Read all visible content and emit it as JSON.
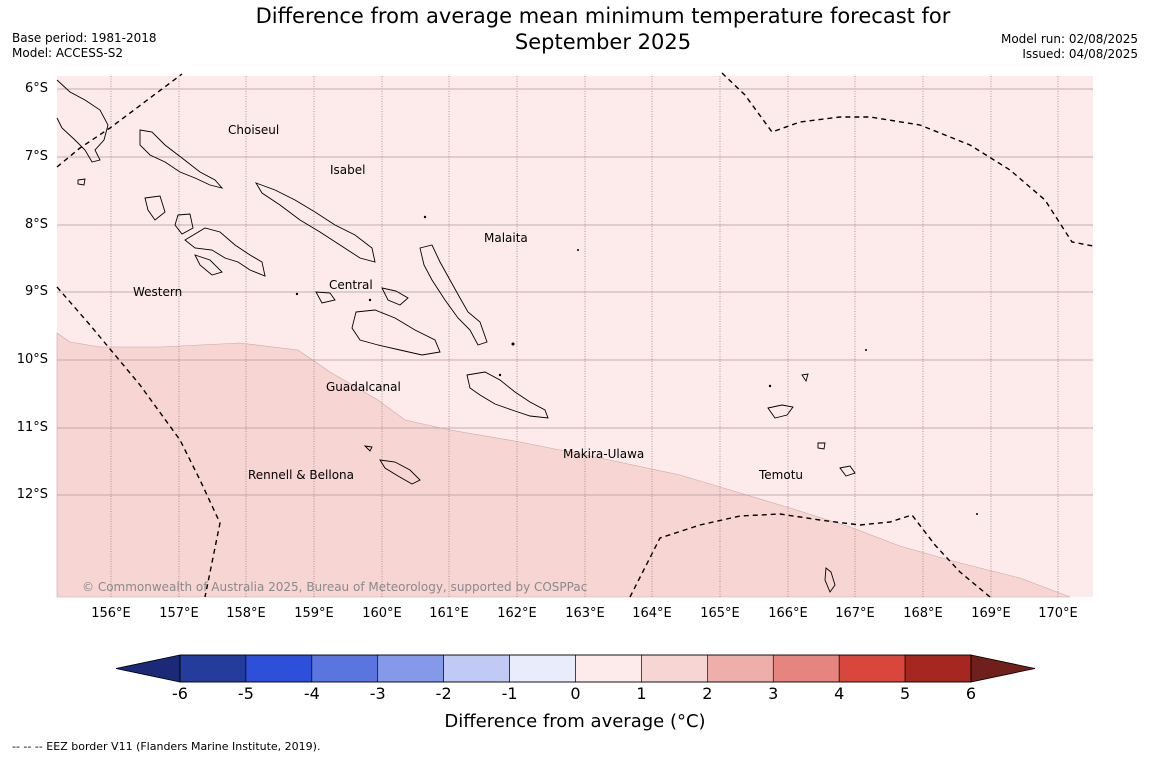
{
  "title_line1": "Difference from average mean minimum temperature forecast for",
  "title_line2": "September 2025",
  "base_period": "Base period: 1981-2018",
  "model": "Model: ACCESS-S2",
  "model_run": "Model run: 02/08/2025",
  "issued": "Issued: 04/08/2025",
  "lat_labels": [
    "6°S",
    "7°S",
    "8°S",
    "9°S",
    "10°S",
    "11°S",
    "12°S"
  ],
  "lon_labels": [
    "156°E",
    "157°E",
    "158°E",
    "159°E",
    "160°E",
    "161°E",
    "162°E",
    "163°E",
    "164°E",
    "165°E",
    "166°E",
    "167°E",
    "168°E",
    "169°E",
    "170°E"
  ],
  "places": {
    "choiseul": "Choiseul",
    "isabel": "Isabel",
    "malaita": "Malaita",
    "western": "Western",
    "central": "Central",
    "guadalcanal": "Guadalcanal",
    "makira": "Makira-Ulawa",
    "rennell": "Rennell & Bellona",
    "temotu": "Temotu"
  },
  "copyright": "© Commonwealth of Australia 2025, Bureau of Meteorology, supported by COSPPac",
  "colorbar": {
    "ticks": [
      "-6",
      "-5",
      "-4",
      "-3",
      "-2",
      "-1",
      "0",
      "1",
      "2",
      "3",
      "4",
      "5",
      "6"
    ],
    "colors": [
      "#243c9c",
      "#2e4fd9",
      "#5a74e0",
      "#8499ea",
      "#c1caf5",
      "#e8ecfb",
      "#fcebea",
      "#f6d5d3",
      "#eeafab",
      "#e6857f",
      "#d9463b",
      "#a6271f"
    ],
    "under_color": "#1a2a78",
    "over_color": "#70201b",
    "label": "Difference from average (°C)"
  },
  "map_fill": {
    "zero_to_one": "#fcebea",
    "one_to_two": "#f6d5d3"
  },
  "footer": "--  --  -- EEZ border V11 (Flanders Marine Institute, 2019)."
}
